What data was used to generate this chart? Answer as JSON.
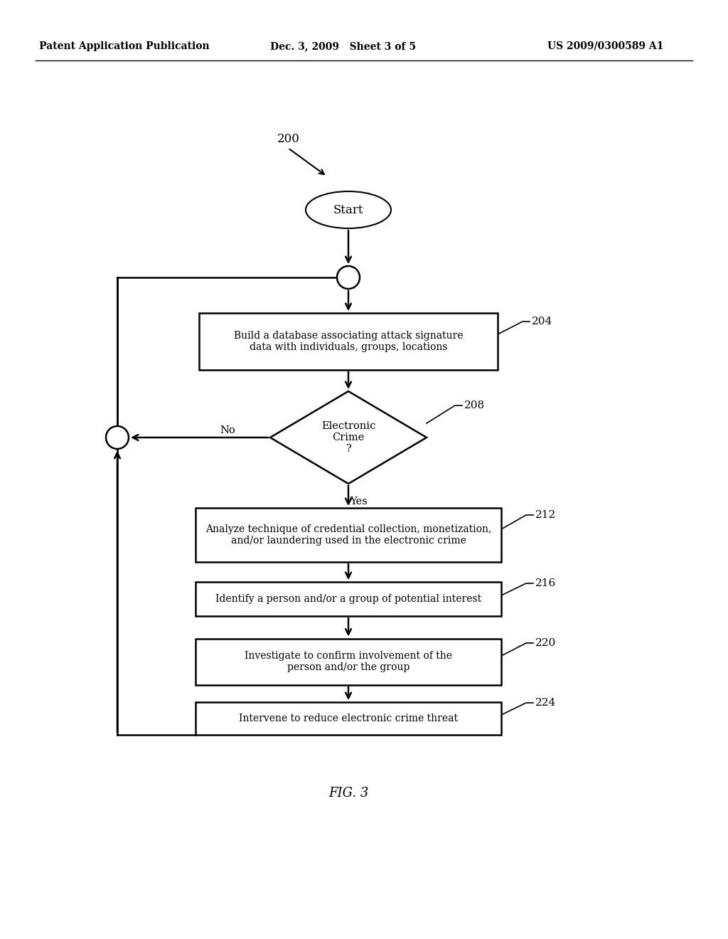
{
  "bg_color": "#ffffff",
  "header_left": "Patent Application Publication",
  "header_mid": "Dec. 3, 2009   Sheet 3 of 5",
  "header_right": "US 2009/0300589 A1",
  "fig_label": "FIG. 3",
  "diagram_label": "200"
}
